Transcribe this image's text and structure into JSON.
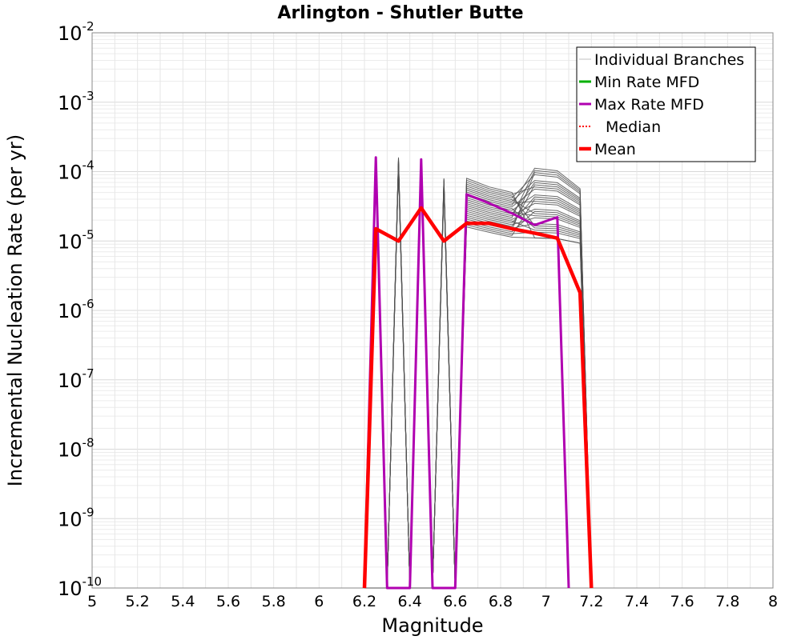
{
  "chart_data": {
    "type": "line",
    "title": "Arlington - Shutler Butte",
    "xlabel": "Magnitude",
    "ylabel": "Incremental Nucleation Rate (per yr)",
    "xlim": [
      5,
      8
    ],
    "ylim": [
      1e-10,
      0.01
    ],
    "yscale": "log",
    "grid": true,
    "legend_position": "top-right",
    "x_ticks": [
      "5",
      "5.2",
      "5.4",
      "5.6",
      "5.8",
      "6",
      "6.2",
      "6.4",
      "6.6",
      "6.8",
      "7",
      "7.2",
      "7.4",
      "7.6",
      "7.8",
      "8"
    ],
    "y_ticks": [
      {
        "base": "10",
        "exp": "-10"
      },
      {
        "base": "10",
        "exp": "-9"
      },
      {
        "base": "10",
        "exp": "-8"
      },
      {
        "base": "10",
        "exp": "-7"
      },
      {
        "base": "10",
        "exp": "-6"
      },
      {
        "base": "10",
        "exp": "-5"
      },
      {
        "base": "10",
        "exp": "-4"
      },
      {
        "base": "10",
        "exp": "-3"
      },
      {
        "base": "10",
        "exp": "-2"
      }
    ],
    "series": [
      {
        "name": "Individual Branches",
        "color": "#505050",
        "x": [
          6.25,
          6.35,
          6.45,
          6.55,
          6.65,
          6.75,
          6.85,
          6.95,
          7.05,
          7.15
        ],
        "y_min": [
          1e-10,
          1e-10,
          1e-10,
          1e-10,
          8e-06,
          7e-06,
          6e-06,
          5e-06,
          5e-06,
          5e-06
        ],
        "y_max": [
          0.00016,
          0.00016,
          0.00015,
          8e-05,
          8e-05,
          6e-05,
          5e-05,
          0.00012,
          0.00011,
          6e-05
        ]
      },
      {
        "name": "Min Rate MFD",
        "color": "#00b000",
        "x": [],
        "y": []
      },
      {
        "name": "Max Rate MFD",
        "color": "#b000b0",
        "x": [
          6.2,
          6.25,
          6.3,
          6.35,
          6.4,
          6.45,
          6.5,
          6.55,
          6.6,
          6.65,
          6.75,
          6.85,
          6.95,
          7.05,
          7.1
        ],
        "y": [
          1e-10,
          0.00016,
          1e-10,
          1e-10,
          1e-10,
          0.00015,
          1e-10,
          1e-10,
          1e-10,
          4.7e-05,
          3.5e-05,
          2.5e-05,
          1.7e-05,
          2.2e-05,
          1e-10
        ]
      },
      {
        "name": "Median",
        "color": "#ff0000",
        "x": [],
        "y": []
      },
      {
        "name": "Mean",
        "color": "#ff0000",
        "x": [
          6.2,
          6.25,
          6.35,
          6.45,
          6.55,
          6.65,
          6.75,
          6.85,
          6.95,
          7.05,
          7.15,
          7.2
        ],
        "y": [
          1e-10,
          1.5e-05,
          1e-05,
          3e-05,
          1e-05,
          1.8e-05,
          1.8e-05,
          1.5e-05,
          1.3e-05,
          1.1e-05,
          1.8e-06,
          1e-10
        ]
      }
    ]
  }
}
